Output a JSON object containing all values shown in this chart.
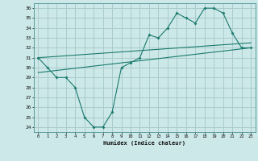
{
  "xlabel": "Humidex (Indice chaleur)",
  "background_color": "#cce8e8",
  "grid_color": "#aacccc",
  "line_color": "#1a7a6e",
  "xlim": [
    -0.5,
    23.5
  ],
  "ylim": [
    23.5,
    36.5
  ],
  "xticks": [
    0,
    1,
    2,
    3,
    4,
    5,
    6,
    7,
    8,
    9,
    10,
    11,
    12,
    13,
    14,
    15,
    16,
    17,
    18,
    19,
    20,
    21,
    22,
    23
  ],
  "yticks": [
    24,
    25,
    26,
    27,
    28,
    29,
    30,
    31,
    32,
    33,
    34,
    35,
    36
  ],
  "series1_x": [
    0,
    1,
    2,
    3,
    4,
    5,
    6,
    7,
    8,
    9,
    10,
    11,
    12,
    13,
    14,
    15,
    16,
    17,
    18,
    19,
    20,
    21,
    22,
    23
  ],
  "series1_y": [
    31.0,
    30.0,
    29.0,
    29.0,
    28.0,
    25.0,
    24.0,
    24.0,
    25.5,
    30.0,
    30.5,
    31.0,
    33.3,
    33.0,
    34.0,
    35.5,
    35.0,
    34.5,
    36.0,
    36.0,
    35.5,
    33.5,
    32.0,
    32.0
  ],
  "series2_x": [
    0,
    23
  ],
  "series2_y": [
    29.5,
    32.0
  ],
  "series3_x": [
    0,
    23
  ],
  "series3_y": [
    31.0,
    32.5
  ]
}
